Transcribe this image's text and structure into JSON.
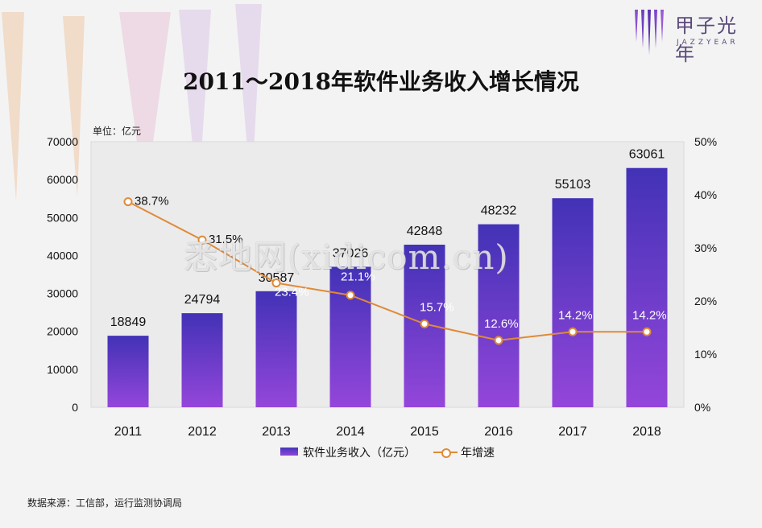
{
  "logo": {
    "name_cn": "甲子光年",
    "name_en": "JAZZYEAR"
  },
  "title": "2011～2018年软件业务收入增长情况",
  "unit_label": "单位：亿元",
  "source": "数据来源：工信部，运行监测协调局",
  "watermark": "悉地网(xidicom.cn)",
  "chart_data": {
    "type": "bar",
    "title": "2011～2018年软件业务收入增长情况",
    "categories": [
      "2011",
      "2012",
      "2013",
      "2014",
      "2015",
      "2016",
      "2017",
      "2018"
    ],
    "series": [
      {
        "name": "软件业务收入（亿元）",
        "type": "bar",
        "axis": "left",
        "values": [
          18849,
          24794,
          30587,
          37026,
          42848,
          48232,
          55103,
          63061
        ],
        "labels": [
          "18849",
          "24794",
          "30587",
          "37026",
          "42848",
          "48232",
          "55103",
          "63061"
        ]
      },
      {
        "name": "年增速",
        "type": "line",
        "axis": "right",
        "values": [
          38.7,
          31.5,
          23.4,
          21.1,
          15.7,
          12.6,
          14.2,
          14.2
        ],
        "labels": [
          "38.7%",
          "31.5%",
          "23.4%",
          "21.1%",
          "15.7%",
          "12.6%",
          "14.2%",
          "14.2%"
        ]
      }
    ],
    "y_left": {
      "min": 0,
      "max": 70000,
      "ticks": [
        "0",
        "10000",
        "20000",
        "30000",
        "40000",
        "50000",
        "60000",
        "70000"
      ]
    },
    "y_right": {
      "min": 0,
      "max": 50,
      "ticks": [
        "0%",
        "10%",
        "20%",
        "30%",
        "40%",
        "50%"
      ]
    },
    "grid": false,
    "legend_position": "bottom",
    "colors": {
      "bar_top": "#4232b6",
      "bar_bottom": "#9446da",
      "line": "#e08a37"
    }
  }
}
